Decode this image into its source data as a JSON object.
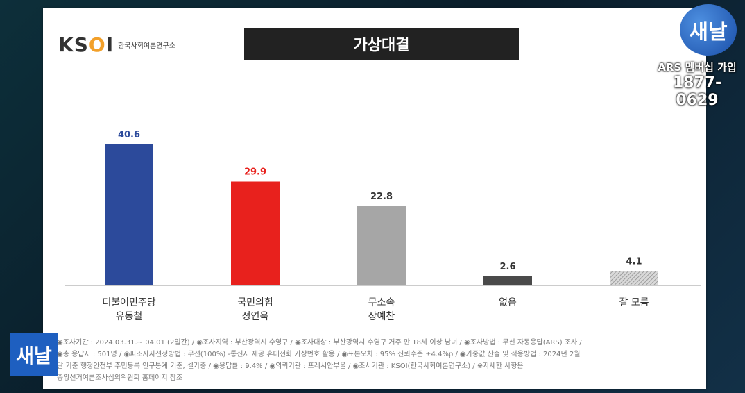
{
  "logo": {
    "mark": "KSOI",
    "subtitle": "한국사회여론연구소"
  },
  "broadcast": {
    "badge": "새날",
    "ars_label": "ARS 멤버십 가입",
    "ars_phone": "1877-0629"
  },
  "colors": {
    "blue": "#2c4a9b",
    "red": "#e8211d",
    "gray": "#a6a6a6",
    "dark": "#4a4a4a",
    "hatched": "#bdbdbd"
  },
  "chart_data": {
    "type": "bar",
    "title": "가상대결",
    "categories": [
      [
        "더불어민주당",
        "유동철"
      ],
      [
        "국민의힘",
        "정연욱"
      ],
      [
        "무소속",
        "장예찬"
      ],
      [
        "없음"
      ],
      [
        "잘 모름"
      ]
    ],
    "values": [
      40.6,
      29.9,
      22.8,
      2.6,
      4.1
    ],
    "value_labels": [
      "40.6",
      "29.9",
      "22.8",
      "2.6",
      "4.1"
    ],
    "bar_colors": [
      "#2c4a9b",
      "#e8211d",
      "#a6a6a6",
      "#4a4a4a",
      "hatched"
    ],
    "label_colors": [
      "#2c4a9b",
      "#e8211d",
      "#333333",
      "#333333",
      "#333333"
    ],
    "ylim": [
      0,
      50
    ],
    "grid": false,
    "legend": "none"
  },
  "footnote": {
    "line1": "◉조사기간 : 2024.03.31.~ 04.01.(2일간)   / ◉조사지역 : 부산광역시 수영구 / ◉조사대상 : 부산광역시 수영구 거주 만 18세 이상 남녀 / ◉조사방법 : 무선 자동응답(ARS) 조사 /",
    "line2": "◉총 응답자 : 501명 / ◉피조사자선정방법 : 무선(100%) -통신사 제공 휴대전화 가상번호 활용 / ◉표본오차 : 95% 신뢰수준 ±4.4%p / ◉가중값 산출 및 적용방법 : 2024년 2월",
    "line3": "말 기준 행정안전부 주민등록 인구통계 기준, 셀가중 / ◉응답률 : 9.4% / ◉의뢰기관 : 프레시안부울 / ◉조사기관 : KSOI(한국사회여론연구소) / ※자세한 사항은",
    "line4": "중앙선거여론조사심의위원회 홈페이지 참조"
  }
}
